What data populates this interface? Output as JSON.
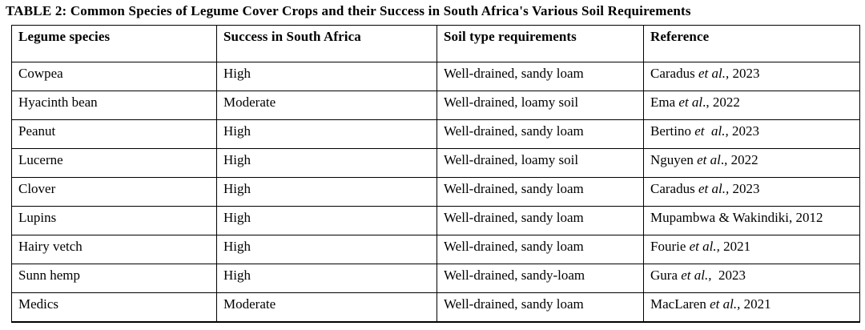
{
  "title": "TABLE 2: Common Species of Legume Cover Crops and their Success in South Africa's Various Soil Requirements",
  "table": {
    "headers": [
      "Legume species",
      "Success in South Africa",
      "Soil type requirements",
      "Reference"
    ],
    "rows": [
      {
        "species": "Cowpea",
        "success": "High",
        "soil": "Well-drained, sandy loam",
        "ref_pre": "Caradus ",
        "ref_italic": "et al.,",
        "ref_post": " 2023"
      },
      {
        "species": "Hyacinth bean",
        "success": "Moderate",
        "soil": "Well-drained, loamy soil",
        "ref_pre": "Ema ",
        "ref_italic": "et al",
        "ref_post": "., 2022"
      },
      {
        "species": "Peanut",
        "success": "High",
        "soil": "Well-drained, sandy loam",
        "ref_pre": "Bertino ",
        "ref_italic": "et  al.,",
        "ref_post": " 2023"
      },
      {
        "species": "Lucerne",
        "success": "High",
        "soil": "Well-drained, loamy soil",
        "ref_pre": "Nguyen ",
        "ref_italic": "et al",
        "ref_post": "., 2022"
      },
      {
        "species": "Clover",
        "success": "High",
        "soil": "Well-drained, sandy loam",
        "ref_pre": "Caradus ",
        "ref_italic": "et al.,",
        "ref_post": " 2023"
      },
      {
        "species": "Lupins",
        "success": "High",
        "soil": "Well-drained, sandy loam",
        "ref_pre": "Mupambwa & Wakindiki, 2012",
        "ref_italic": "",
        "ref_post": ""
      },
      {
        "species": "Hairy vetch",
        "success": "High",
        "soil": "Well-drained, sandy loam",
        "ref_pre": "Fourie ",
        "ref_italic": "et al.,",
        "ref_post": " 2021"
      },
      {
        "species": "Sunn hemp",
        "success": "High",
        "soil": "Well-drained, sandy-loam",
        "ref_pre": "Gura ",
        "ref_italic": "et al.,",
        "ref_post": "  2023"
      },
      {
        "species": "Medics",
        "success": "Moderate",
        "soil": "Well-drained, sandy loam",
        "ref_pre": "MacLaren ",
        "ref_italic": "et al.,",
        "ref_post": " 2021"
      }
    ]
  }
}
